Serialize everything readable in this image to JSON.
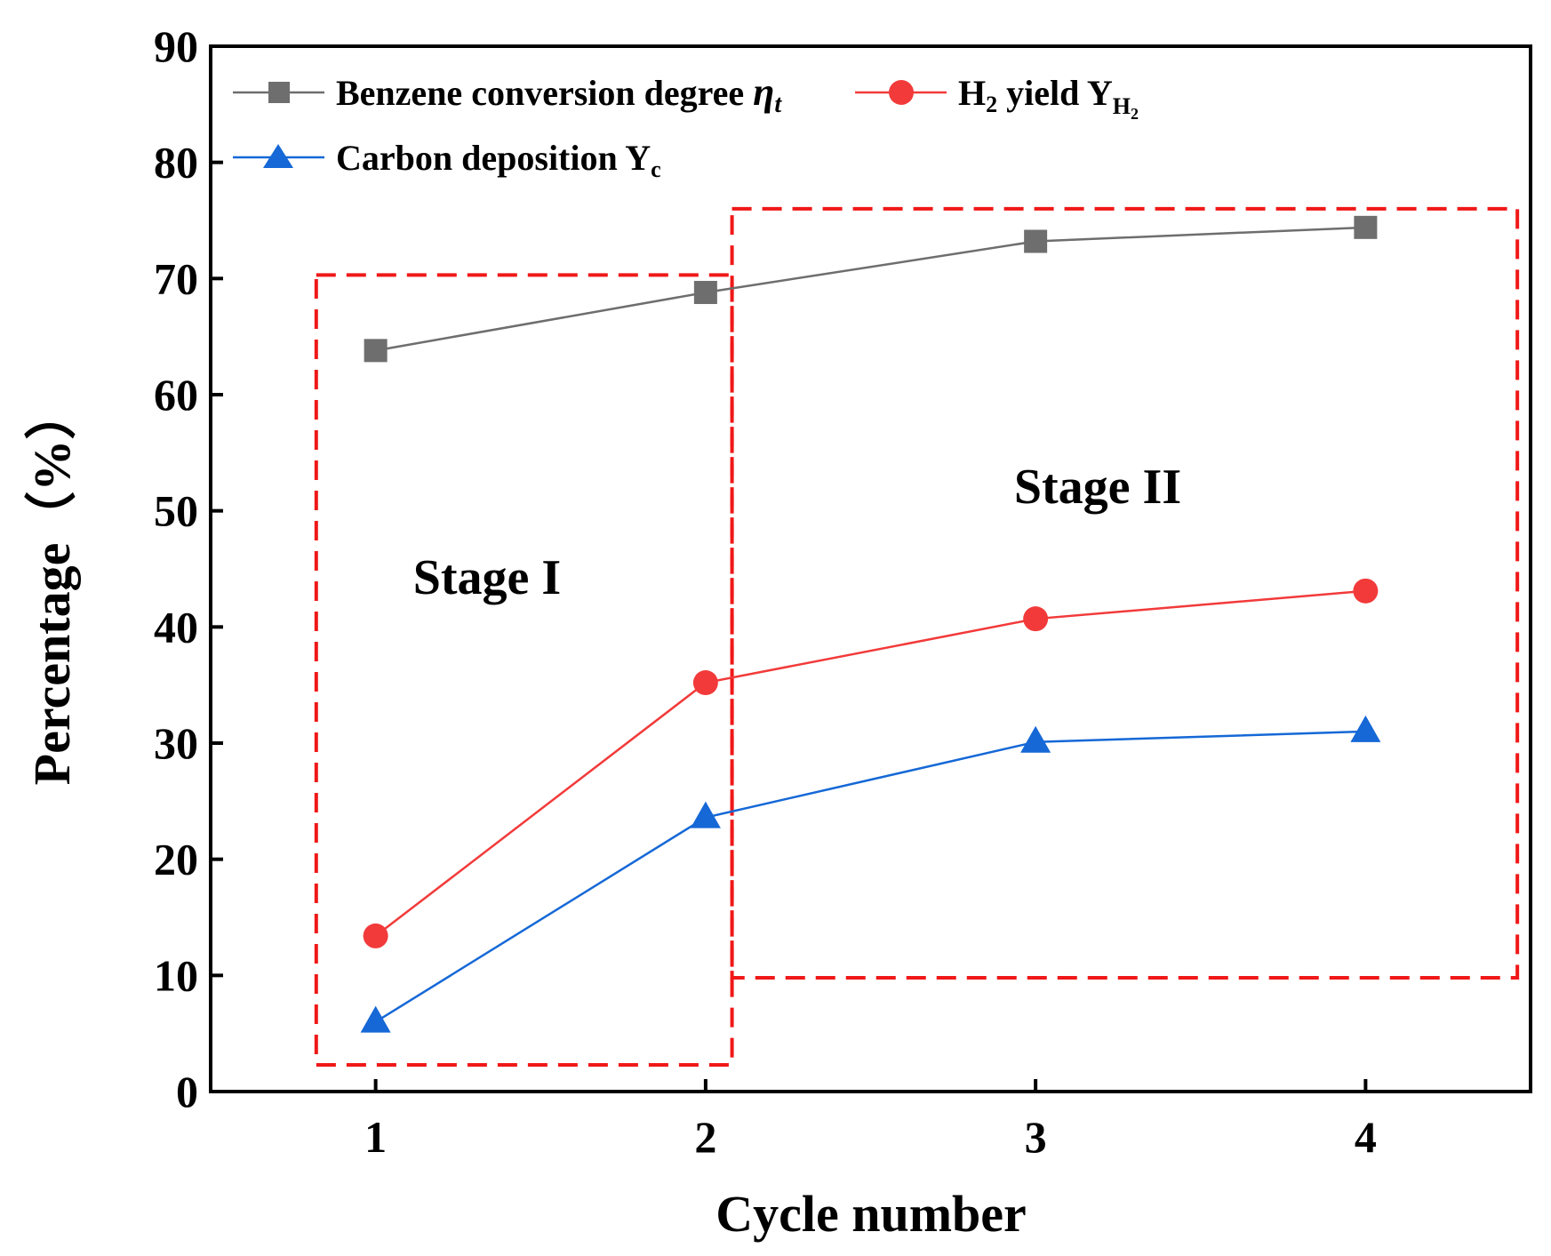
{
  "chart_data": {
    "type": "line",
    "title": "",
    "xlabel": "Cycle number",
    "ylabel": "Percentage（%）",
    "x": [
      1,
      2,
      3,
      4
    ],
    "xlim": [
      0.5,
      4.5
    ],
    "ylim": [
      0,
      90
    ],
    "xticks": [
      "1",
      "2",
      "3",
      "4"
    ],
    "yticks": [
      "0",
      "10",
      "20",
      "30",
      "40",
      "50",
      "60",
      "70",
      "80",
      "90"
    ],
    "grid": false,
    "legend_position": "top-left",
    "series": [
      {
        "name": "Benzene conversion degree ηt",
        "legend_main": "Benzene conversion degree ",
        "legend_symbol": "η",
        "legend_sub": "t",
        "marker": "square",
        "color": "#6e6e6e",
        "values": [
          63.8,
          68.8,
          73.2,
          74.4
        ]
      },
      {
        "name": "H2 yield YH2",
        "legend_main": "H",
        "legend_sub1": "2",
        "legend_mid": " yield Y",
        "legend_sub2": "H",
        "legend_subsub": "2",
        "marker": "circle",
        "color": "#f23a3a",
        "values": [
          13.4,
          35.2,
          40.7,
          43.1
        ]
      },
      {
        "name": "Carbon deposition Yc",
        "legend_main": "Carbon deposition Y",
        "legend_sub": "c",
        "marker": "triangle",
        "color": "#1568d6",
        "values": [
          6.0,
          23.6,
          30.1,
          31.0
        ]
      }
    ],
    "annotations": [
      {
        "text": "Stage I",
        "box_color": "#f01818",
        "style": "dashed",
        "x_range": [
          0.82,
          2.08
        ],
        "y_range": [
          2.3,
          70.3
        ]
      },
      {
        "text": "Stage II",
        "box_color": "#f01818",
        "style": "dashed",
        "x_range": [
          2.08,
          4.46
        ],
        "y_range": [
          9.8,
          76.0
        ]
      }
    ]
  }
}
